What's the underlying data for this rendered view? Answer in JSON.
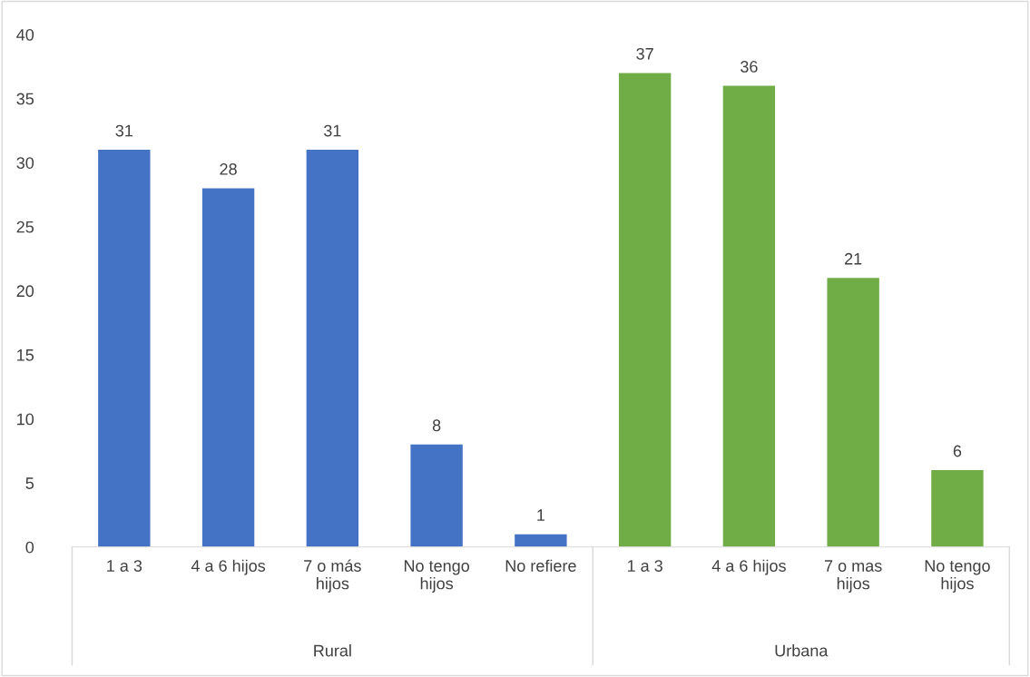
{
  "chart_data": {
    "type": "bar",
    "categories": [
      "1 a 3",
      "4 a 6 hijos",
      "7 o más\nhijos",
      "No tengo\nhijos",
      "No refiere",
      "1 a 3",
      "4 a 6 hijos",
      "7 o mas\nhijos",
      "No tengo\nhijos"
    ],
    "values": [
      31,
      28,
      31,
      8,
      1,
      37,
      36,
      21,
      6
    ],
    "colors": [
      "#4472c4",
      "#4472c4",
      "#4472c4",
      "#4472c4",
      "#4472c4",
      "#70ad47",
      "#70ad47",
      "#70ad47",
      "#70ad47"
    ],
    "annotations": [
      "Rural",
      "Urbana"
    ],
    "ylim": [
      0,
      40
    ],
    "yticks": [
      0,
      5,
      10,
      15,
      20,
      25,
      30,
      35,
      40
    ],
    "data_labels": true,
    "grid": false,
    "legend": false
  }
}
